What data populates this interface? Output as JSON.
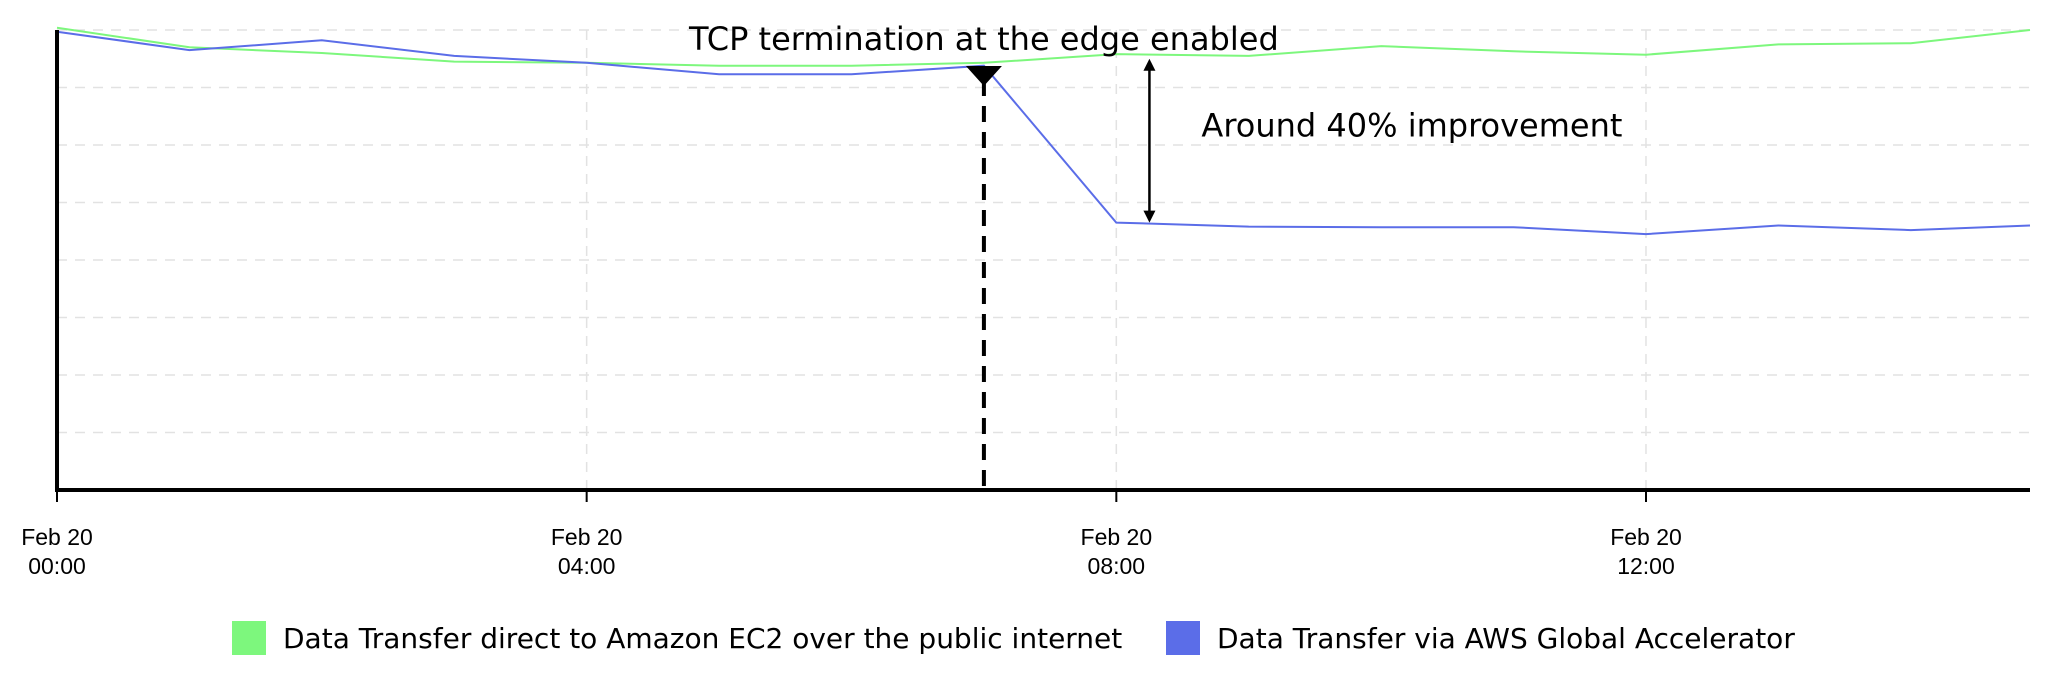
{
  "chart_data": {
    "type": "line",
    "title": "",
    "xlabel": "",
    "ylabel": "",
    "x_unit": "hours",
    "xlim": [
      0,
      14.9
    ],
    "ylim": [
      0,
      8
    ],
    "grid": true,
    "y_tick_labels_shown": false,
    "x_ticks": [
      {
        "x": 0,
        "line1": "Feb 20",
        "line2": "00:00"
      },
      {
        "x": 4,
        "line1": "Feb 20",
        "line2": "04:00"
      },
      {
        "x": 8,
        "line1": "Feb 20",
        "line2": "08:00"
      },
      {
        "x": 12,
        "line1": "Feb 20",
        "line2": "12:00"
      }
    ],
    "series": [
      {
        "name": "Data Transfer direct to Amazon EC2 over the public internet",
        "color": "#7df77d",
        "x": [
          0,
          1,
          2,
          3,
          4,
          5,
          6,
          7,
          8,
          9,
          10,
          11,
          12,
          13,
          14,
          14.9
        ],
        "y": [
          8.04,
          7.7,
          7.6,
          7.45,
          7.43,
          7.38,
          7.38,
          7.43,
          7.58,
          7.55,
          7.72,
          7.63,
          7.57,
          7.75,
          7.77,
          8.0
        ]
      },
      {
        "name": "Data Transfer via AWS Global Accelerator",
        "color": "#5b6de8",
        "x": [
          0,
          1,
          2,
          3,
          4,
          5,
          6,
          7,
          8,
          9,
          10,
          11,
          12,
          13,
          14,
          14.9
        ],
        "y": [
          7.97,
          7.65,
          7.82,
          7.55,
          7.43,
          7.23,
          7.23,
          7.38,
          4.65,
          4.58,
          4.57,
          4.57,
          4.45,
          4.6,
          4.52,
          4.6
        ]
      }
    ],
    "annotations": {
      "event_label": "TCP termination at the edge enabled",
      "event_x": 7,
      "improvement_label": "Around 40% improvement",
      "improvement_x": 8.25,
      "improvement_y_from": 7.43,
      "improvement_y_to": 4.65
    },
    "legend_position": "bottom-center"
  }
}
